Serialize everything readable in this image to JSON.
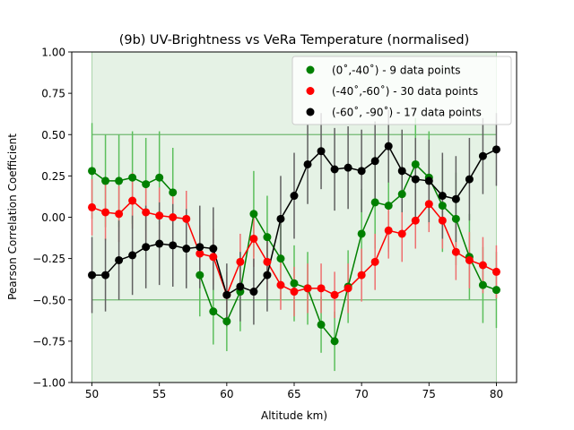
{
  "chart_data": {
    "type": "scatter",
    "title": "(9b) UV-Brightness vs VeRa Temperature (normalised)",
    "xlabel": "Altitude km)",
    "ylabel": "Pearson Correlation Coefficient",
    "xlim": [
      48.5,
      81.5
    ],
    "ylim": [
      -1.0,
      1.0
    ],
    "xticks": [
      50,
      55,
      60,
      65,
      70,
      75,
      80
    ],
    "xtick_labels": [
      "50",
      "55",
      "60",
      "65",
      "70",
      "75",
      "80"
    ],
    "yticks": [
      -1.0,
      -0.75,
      -0.5,
      -0.25,
      0.0,
      0.25,
      0.5,
      0.75,
      1.0
    ],
    "ytick_labels": [
      "−1.00",
      "−0.75",
      "−0.50",
      "−0.25",
      "0.00",
      "0.25",
      "0.50",
      "0.75",
      "1.00"
    ],
    "legend_position": "top-right",
    "significance_band": {
      "x_range": [
        50,
        80
      ],
      "y_range": [
        -1.0,
        1.0
      ],
      "lines": [
        0.5,
        -0.5
      ],
      "color": "#008000"
    },
    "x": [
      50,
      51,
      52,
      53,
      54,
      55,
      56,
      57,
      58,
      59,
      60,
      61,
      62,
      63,
      64,
      65,
      66,
      67,
      68,
      69,
      70,
      71,
      72,
      73,
      74,
      75,
      76,
      77,
      78,
      79,
      80
    ],
    "series": [
      {
        "name": "(0˚,-40˚) - 9 data points",
        "color": "#008000",
        "error_color": "#5cbf5c",
        "values": [
          0.28,
          0.22,
          0.22,
          0.24,
          0.2,
          0.24,
          0.15,
          null,
          -0.35,
          -0.57,
          -0.63,
          -0.45,
          0.02,
          -0.12,
          -0.25,
          -0.4,
          -0.43,
          -0.65,
          -0.75,
          -0.42,
          -0.1,
          0.09,
          0.07,
          0.14,
          0.32,
          0.24,
          0.07,
          -0.01,
          -0.24,
          -0.41,
          -0.44
        ],
        "errors": [
          0.29,
          0.28,
          0.28,
          0.28,
          0.28,
          0.28,
          0.27,
          null,
          0.25,
          0.2,
          0.18,
          0.24,
          0.26,
          0.25,
          0.25,
          0.23,
          0.22,
          0.17,
          0.18,
          0.22,
          0.27,
          0.28,
          0.28,
          0.28,
          0.28,
          0.28,
          0.28,
          0.28,
          0.26,
          0.23,
          0.23
        ]
      },
      {
        "name": "(-40˚,-60˚) - 30 data points",
        "color": "#ff0000",
        "error_color": "#ee7070",
        "values": [
          0.06,
          0.03,
          0.02,
          0.1,
          0.03,
          0.01,
          0.0,
          -0.01,
          -0.22,
          -0.24,
          -0.47,
          -0.27,
          -0.13,
          -0.27,
          -0.41,
          -0.45,
          -0.43,
          -0.43,
          -0.47,
          -0.43,
          -0.35,
          -0.27,
          -0.08,
          -0.1,
          -0.02,
          0.08,
          -0.02,
          -0.21,
          -0.26,
          -0.29,
          -0.33
        ],
        "errors": [
          0.17,
          0.17,
          0.17,
          0.17,
          0.17,
          0.17,
          0.17,
          0.17,
          0.17,
          0.17,
          0.14,
          0.17,
          0.17,
          0.17,
          0.15,
          0.15,
          0.15,
          0.15,
          0.14,
          0.15,
          0.16,
          0.17,
          0.17,
          0.17,
          0.17,
          0.17,
          0.17,
          0.17,
          0.17,
          0.17,
          0.16
        ]
      },
      {
        "name": "(-60˚, -90˚) - 17 data points",
        "color": "#000000",
        "error_color": "#606060",
        "values": [
          -0.35,
          -0.35,
          -0.26,
          -0.23,
          -0.18,
          -0.16,
          -0.17,
          -0.19,
          -0.18,
          -0.19,
          -0.47,
          -0.42,
          -0.45,
          -0.35,
          -0.01,
          0.13,
          0.32,
          0.4,
          0.29,
          0.3,
          0.28,
          0.34,
          0.43,
          0.28,
          0.23,
          0.22,
          0.13,
          0.11,
          0.23,
          0.37,
          0.41
        ],
        "errors": [
          0.23,
          0.22,
          0.24,
          0.24,
          0.25,
          0.25,
          0.25,
          0.24,
          0.25,
          0.25,
          0.19,
          0.21,
          0.2,
          0.22,
          0.26,
          0.26,
          0.24,
          0.23,
          0.25,
          0.25,
          0.25,
          0.24,
          0.22,
          0.25,
          0.25,
          0.25,
          0.26,
          0.26,
          0.25,
          0.23,
          0.22
        ]
      }
    ]
  }
}
